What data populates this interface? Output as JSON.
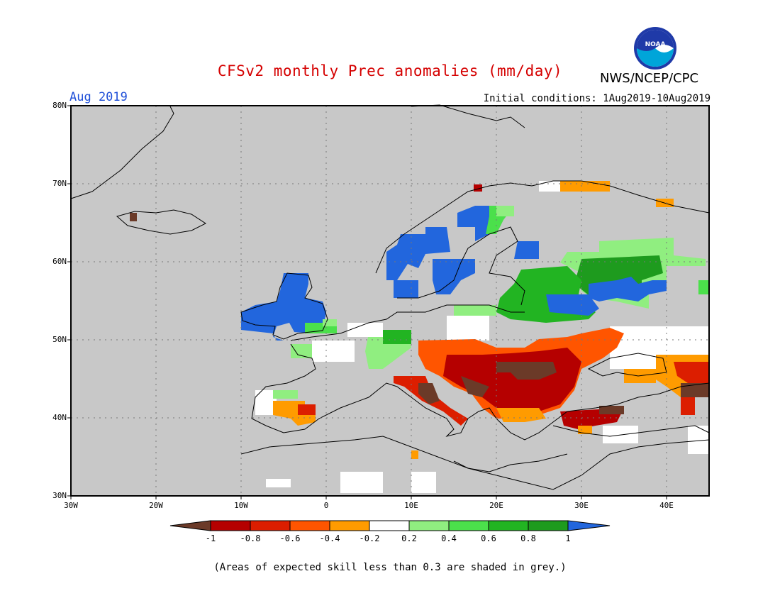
{
  "header": {
    "title": "CFSv2 monthly Prec anomalies (mm/day)",
    "agency": "NWS/NCEP/CPC",
    "month": "Aug 2019",
    "initial_conditions": "Initial conditions: 1Aug2019-10Aug2019"
  },
  "logo": {
    "text": "NOAA"
  },
  "map": {
    "lat_labels": [
      "80N",
      "70N",
      "60N",
      "50N",
      "40N",
      "30N"
    ],
    "lon_labels": [
      "30W",
      "20W",
      "10W",
      "0",
      "10E",
      "20E",
      "30E",
      "40E"
    ],
    "background_color": "#c8c8c8",
    "regions": [
      {
        "area": "British Isles",
        "category": "1"
      },
      {
        "area": "Southern Norway",
        "category": "1"
      },
      {
        "area": "Central Sweden",
        "category": "1"
      },
      {
        "area": "Baltic / Western Russia",
        "category": "0.8"
      },
      {
        "area": "France / Benelux",
        "category": "0.2"
      },
      {
        "area": "Balkans / Hungary / Romania",
        "category": "-0.8"
      },
      {
        "area": "Italy",
        "category": "-0.6"
      },
      {
        "area": "Turkey",
        "category": "-0.8"
      },
      {
        "area": "Spain",
        "category": "-0.4"
      },
      {
        "area": "Black Sea / Caucasus",
        "category": "-0.4"
      }
    ]
  },
  "colorbar": {
    "labels": [
      "-1",
      "-0.8",
      "-0.6",
      "-0.4",
      "-0.2",
      "0.2",
      "0.4",
      "0.6",
      "0.8",
      "1"
    ],
    "colors": [
      "#6b3a28",
      "#b50000",
      "#dc1e00",
      "#ff5500",
      "#ff9b00",
      "#ffffff",
      "#90ee80",
      "#4be04b",
      "#22b422",
      "#1e9b1e",
      "#2266dd"
    ]
  },
  "footnote": "(Areas of expected skill less than 0.3 are shaded in grey.)"
}
